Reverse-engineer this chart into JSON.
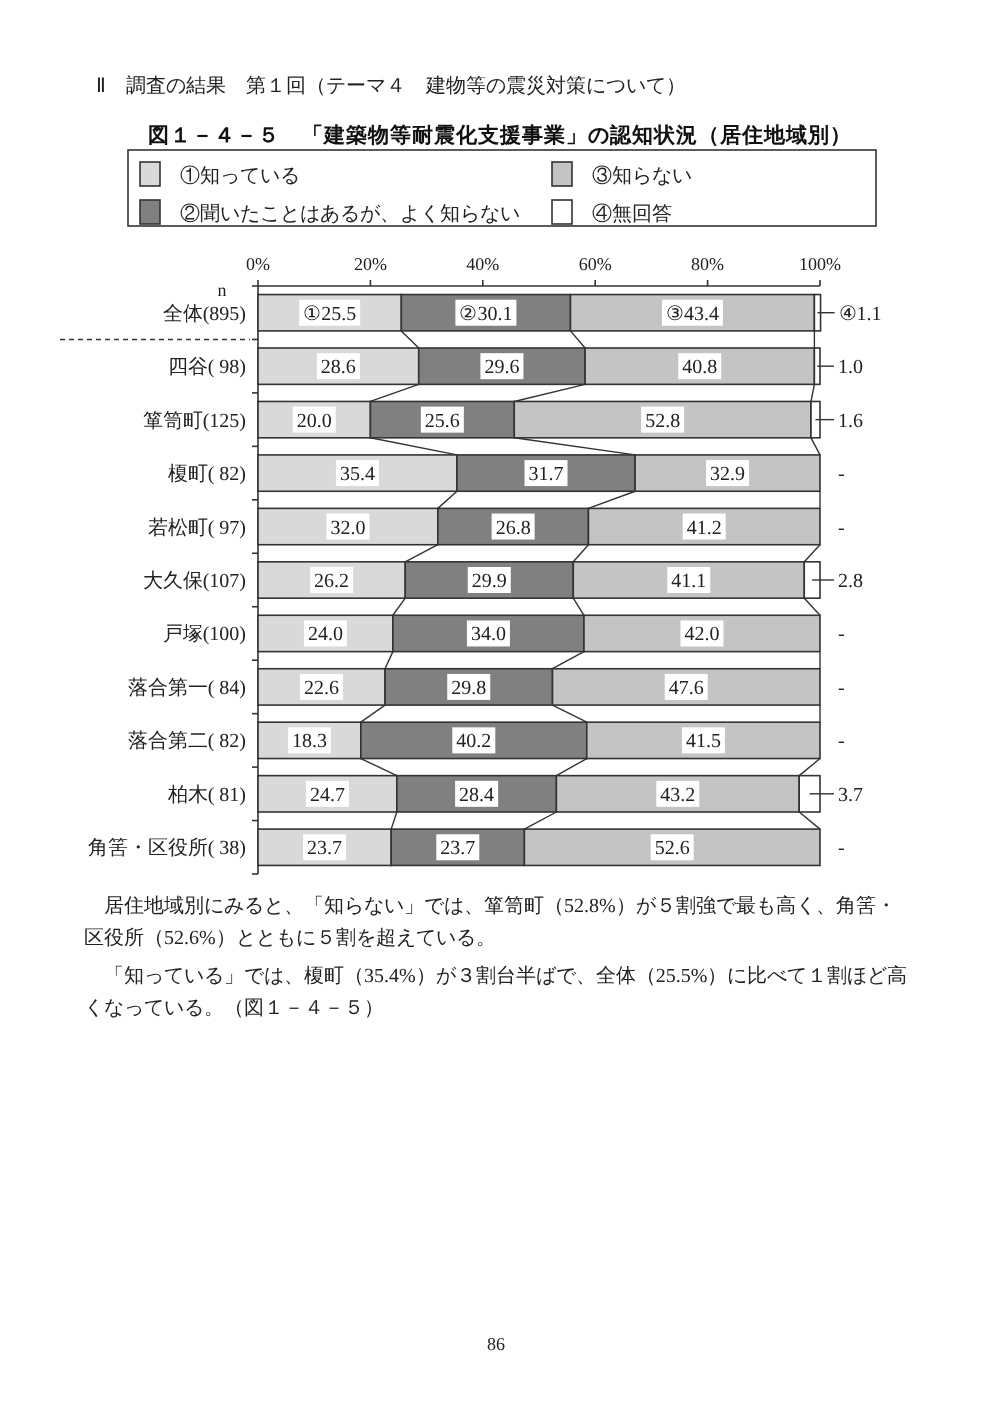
{
  "chart_data": {
    "type": "bar",
    "orientation": "horizontal",
    "stacked": true,
    "title": "図１－４－５　「建築物等耐震化支援事業」の認知状況（居住地域別）",
    "categories": [
      "全体(895)",
      "四谷( 98)",
      "箪笥町(125)",
      "榎町( 82)",
      "若松町( 97)",
      "大久保(107)",
      "戸塚(100)",
      "落合第一( 84)",
      "落合第二( 82)",
      "柏木( 81)",
      "角筈・区役所( 38)"
    ],
    "series": [
      {
        "name": "①知っている",
        "color": "#d9d9d9",
        "values": [
          25.5,
          28.6,
          20.0,
          35.4,
          32.0,
          26.2,
          24.0,
          22.6,
          18.3,
          24.7,
          23.7
        ],
        "value_labels": [
          "①25.5",
          "28.6",
          "20.0",
          "35.4",
          "32.0",
          "26.2",
          "24.0",
          "22.6",
          "18.3",
          "24.7",
          "23.7"
        ]
      },
      {
        "name": "②聞いたことはあるが、よく知らない",
        "color": "#808080",
        "values": [
          30.1,
          29.6,
          25.6,
          31.7,
          26.8,
          29.9,
          34.0,
          29.8,
          40.2,
          28.4,
          23.7
        ],
        "value_labels": [
          "②30.1",
          "29.6",
          "25.6",
          "31.7",
          "26.8",
          "29.9",
          "34.0",
          "29.8",
          "40.2",
          "28.4",
          "23.7"
        ]
      },
      {
        "name": "③知らない",
        "color": "#c4c4c4",
        "values": [
          43.4,
          40.8,
          52.8,
          32.9,
          41.2,
          41.1,
          42.0,
          47.6,
          41.5,
          43.2,
          52.6
        ],
        "value_labels": [
          "③43.4",
          "40.8",
          "52.8",
          "32.9",
          "41.2",
          "41.1",
          "42.0",
          "47.6",
          "41.5",
          "43.2",
          "52.6"
        ]
      },
      {
        "name": "④無回答",
        "color": "#ffffff",
        "values": [
          1.1,
          1.0,
          1.6,
          0,
          0,
          2.8,
          0,
          0,
          0,
          3.7,
          0
        ],
        "value_labels": [
          "④1.1",
          "1.0",
          "1.6",
          "-",
          "-",
          "2.8",
          "-",
          "-",
          "-",
          "3.7",
          "-"
        ]
      }
    ],
    "xlim": [
      0,
      100
    ],
    "xticks": [
      {
        "value": 0,
        "label": "0%"
      },
      {
        "value": 20,
        "label": "20%"
      },
      {
        "value": 40,
        "label": "40%"
      },
      {
        "value": 60,
        "label": "60%"
      },
      {
        "value": 80,
        "label": "80%"
      },
      {
        "value": 100,
        "label": "100%"
      }
    ],
    "legend": "top",
    "annotations": [
      "Ⅱ　調査の結果　第１回（テーマ４　建物等の震災対策について）",
      "n",
      "居住地域別にみると、「知らない」では、箪笥町（52.8%）が５割強で最も高く、角筈・区役所（52.6%）とともに５割を超えている。",
      "「知っている」では、榎町（35.4%）が３割台半ばで、全体（25.5%）に比べて１割ほど高くなっている。（図１－４－５）",
      "86"
    ]
  }
}
